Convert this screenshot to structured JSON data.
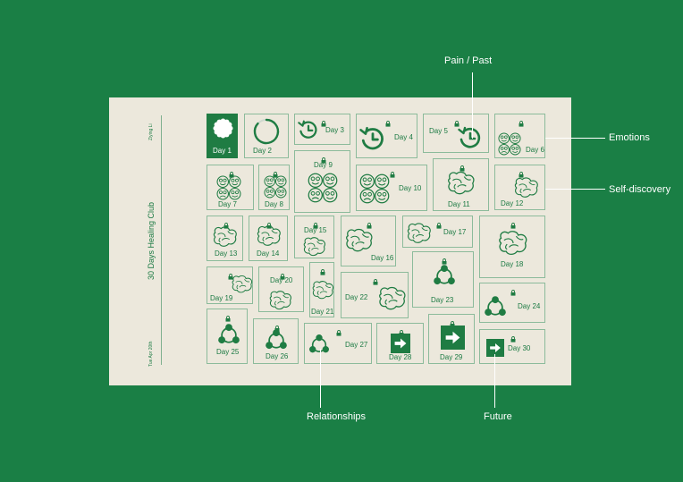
{
  "app": {
    "title": "30 Days Healing Club",
    "author": "Ziying Li",
    "date": "Tue Apr 20th"
  },
  "annotations": {
    "pain_past": "Pain / Past",
    "emotions": "Emotions",
    "self_discovery": "Self-discovery",
    "relationships": "Relationships",
    "future": "Future"
  },
  "colors": {
    "background": "#1a7f45",
    "card": "#ece8dc",
    "accent": "#1f7c43",
    "tile_border": "#8cbb9b"
  },
  "days": [
    {
      "label": "Day 1",
      "category": "sun",
      "locked": false,
      "filled": true
    },
    {
      "label": "Day 2",
      "category": "progress-ring",
      "locked": false,
      "filled": false
    },
    {
      "label": "Day 3",
      "category": "pain-past",
      "locked": true,
      "filled": false
    },
    {
      "label": "Day 4",
      "category": "pain-past",
      "locked": true,
      "filled": false
    },
    {
      "label": "Day 5",
      "category": "pain-past",
      "locked": true,
      "filled": false
    },
    {
      "label": "Day 6",
      "category": "emotions",
      "locked": true,
      "filled": false
    },
    {
      "label": "Day 7",
      "category": "emotions",
      "locked": true,
      "filled": false
    },
    {
      "label": "Day 8",
      "category": "emotions",
      "locked": true,
      "filled": false
    },
    {
      "label": "Day 9",
      "category": "emotions",
      "locked": true,
      "filled": false
    },
    {
      "label": "Day 10",
      "category": "emotions",
      "locked": true,
      "filled": false
    },
    {
      "label": "Day 11",
      "category": "self-discovery",
      "locked": true,
      "filled": false
    },
    {
      "label": "Day 12",
      "category": "self-discovery",
      "locked": true,
      "filled": false
    },
    {
      "label": "Day 13",
      "category": "self-discovery",
      "locked": true,
      "filled": false
    },
    {
      "label": "Day 14",
      "category": "self-discovery",
      "locked": true,
      "filled": false
    },
    {
      "label": "Day 15",
      "category": "self-discovery",
      "locked": true,
      "filled": false
    },
    {
      "label": "Day 16",
      "category": "self-discovery",
      "locked": true,
      "filled": false
    },
    {
      "label": "Day 17",
      "category": "self-discovery",
      "locked": true,
      "filled": false
    },
    {
      "label": "Day 18",
      "category": "self-discovery",
      "locked": true,
      "filled": false
    },
    {
      "label": "Day 19",
      "category": "self-discovery",
      "locked": true,
      "filled": false
    },
    {
      "label": "Day 20",
      "category": "self-discovery",
      "locked": true,
      "filled": false
    },
    {
      "label": "Day 21",
      "category": "self-discovery",
      "locked": true,
      "filled": false
    },
    {
      "label": "Day 22",
      "category": "self-discovery",
      "locked": true,
      "filled": false
    },
    {
      "label": "Day 23",
      "category": "relationships",
      "locked": true,
      "filled": false
    },
    {
      "label": "Day 24",
      "category": "relationships",
      "locked": true,
      "filled": false
    },
    {
      "label": "Day 25",
      "category": "relationships",
      "locked": true,
      "filled": false
    },
    {
      "label": "Day 26",
      "category": "relationships",
      "locked": true,
      "filled": false
    },
    {
      "label": "Day 27",
      "category": "relationships",
      "locked": true,
      "filled": false
    },
    {
      "label": "Day 28",
      "category": "future",
      "locked": true,
      "filled": false
    },
    {
      "label": "Day 29",
      "category": "future",
      "locked": true,
      "filled": false
    },
    {
      "label": "Day 30",
      "category": "future",
      "locked": true,
      "filled": false
    }
  ]
}
